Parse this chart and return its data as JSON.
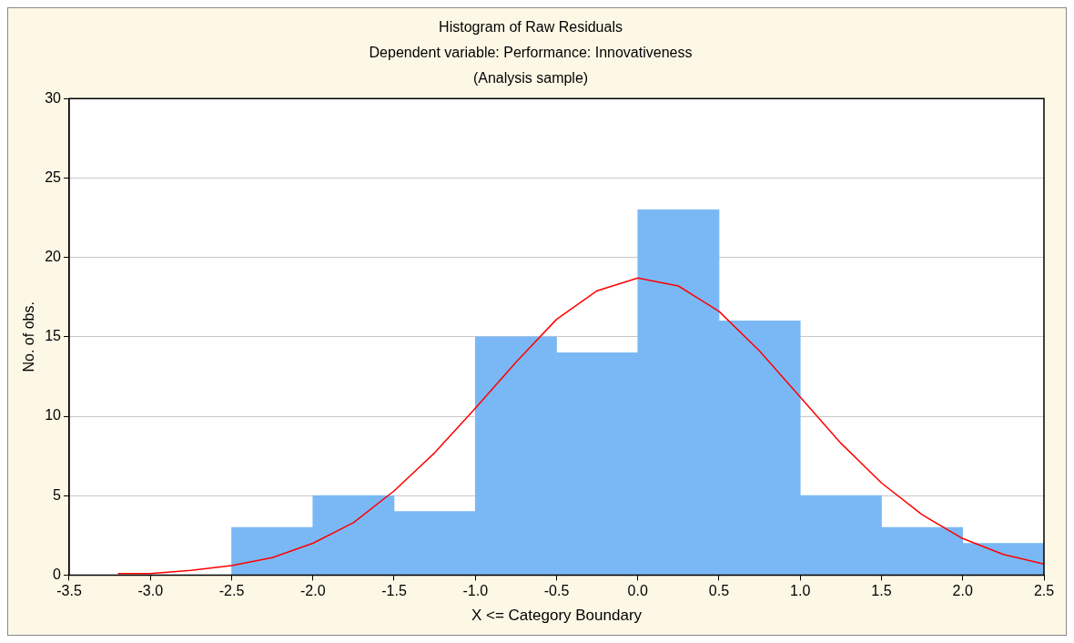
{
  "chart_data": {
    "type": "histogram",
    "title": "Histogram of Raw Residuals",
    "subtitle": "Dependent variable: Performance: Innovativeness\n(Analysis sample)",
    "xlabel": "X <= Category Boundary",
    "ylabel": "No. of obs.",
    "bins": [
      -2.5,
      -2.0,
      -1.5,
      -1.0,
      -0.5,
      0.0,
      0.5,
      1.0,
      1.5,
      2.0,
      2.5
    ],
    "values": [
      3,
      5,
      4,
      15,
      14,
      23,
      16,
      5,
      3,
      2
    ],
    "color": "#7ab8f5",
    "series": [
      {
        "type": "line",
        "color": "#ff0000",
        "x": [
          -3.2,
          -3.0,
          -2.75,
          -2.5,
          -2.25,
          -2.0,
          -1.75,
          -1.5,
          -1.25,
          -1.0,
          -0.75,
          -0.5,
          -0.25,
          0.0,
          0.25,
          0.5,
          0.75,
          1.0,
          1.25,
          1.5,
          1.75,
          2.0,
          2.25,
          2.5
        ],
        "values": [
          0.1,
          0.1,
          0.3,
          0.6,
          1.1,
          2.0,
          3.3,
          5.3,
          7.7,
          10.5,
          13.4,
          16.1,
          17.9,
          18.7,
          18.2,
          16.6,
          14.1,
          11.2,
          8.3,
          5.8,
          3.8,
          2.3,
          1.3,
          0.7
        ]
      }
    ],
    "xlim": [
      -3.5,
      2.5
    ],
    "xticks": [
      {
        "value": -3.5,
        "label": "-3.5"
      },
      {
        "value": -3.0,
        "label": "-3.0"
      },
      {
        "value": -2.5,
        "label": "-2.5"
      },
      {
        "value": -2.0,
        "label": "-2.0"
      },
      {
        "value": -1.5,
        "label": "-1.5"
      },
      {
        "value": -1.0,
        "label": "-1.0"
      },
      {
        "value": -0.5,
        "label": "-0.5"
      },
      {
        "value": 0.0,
        "label": "0.0"
      },
      {
        "value": 0.5,
        "label": "0.5"
      },
      {
        "value": 1.0,
        "label": "1.0"
      },
      {
        "value": 1.5,
        "label": "1.5"
      },
      {
        "value": 2.0,
        "label": "2.0"
      },
      {
        "value": 2.5,
        "label": "2.5"
      }
    ],
    "ylim": [
      0,
      30
    ],
    "yticks": [
      0,
      5,
      10,
      15,
      20,
      25,
      30
    ],
    "grid": "y",
    "legend": false,
    "marker": "none",
    "line_style": "solid"
  }
}
